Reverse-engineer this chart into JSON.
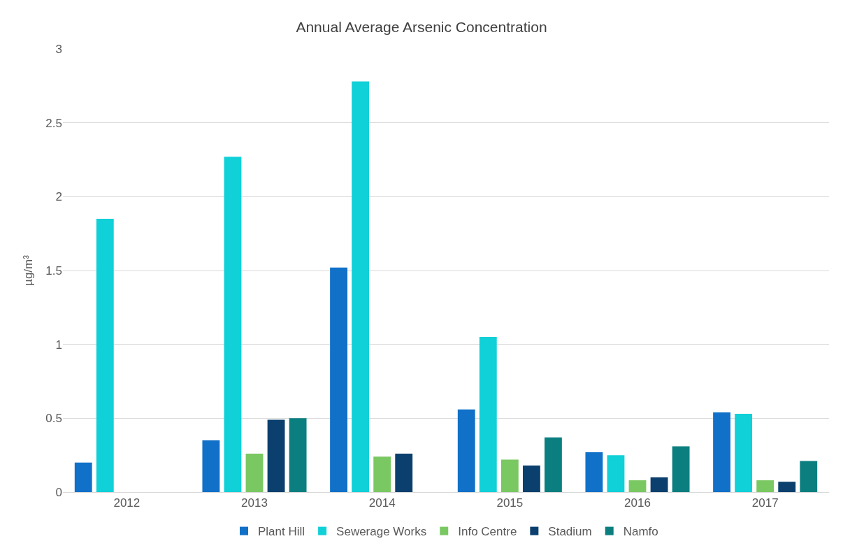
{
  "chart_data": {
    "type": "bar",
    "title": "Annual Average Arsenic Concentration",
    "ylabel": "µg/m³",
    "categories": [
      "2012",
      "2013",
      "2014",
      "2015",
      "2016",
      "2017"
    ],
    "series": [
      {
        "name": "Plant Hill",
        "color": "#1170c8",
        "values": [
          0.2,
          0.35,
          1.52,
          0.56,
          0.27,
          0.54
        ]
      },
      {
        "name": "Sewerage Works",
        "color": "#10d0d8",
        "values": [
          1.85,
          2.27,
          2.78,
          1.05,
          0.25,
          0.53
        ]
      },
      {
        "name": "Info Centre",
        "color": "#7ac862",
        "values": [
          null,
          0.26,
          0.24,
          0.22,
          0.08,
          0.08
        ]
      },
      {
        "name": "Stadium",
        "color": "#0a3f6e",
        "values": [
          null,
          0.49,
          0.26,
          0.18,
          0.1,
          0.07
        ]
      },
      {
        "name": "Namfo",
        "color": "#0b7f80",
        "values": [
          null,
          0.5,
          null,
          0.37,
          0.31,
          0.21
        ]
      }
    ],
    "ylim": [
      0,
      3
    ],
    "yticks": [
      0,
      0.5,
      1,
      1.5,
      2,
      2.5,
      3
    ],
    "grid": "y",
    "legend": "bottom"
  }
}
